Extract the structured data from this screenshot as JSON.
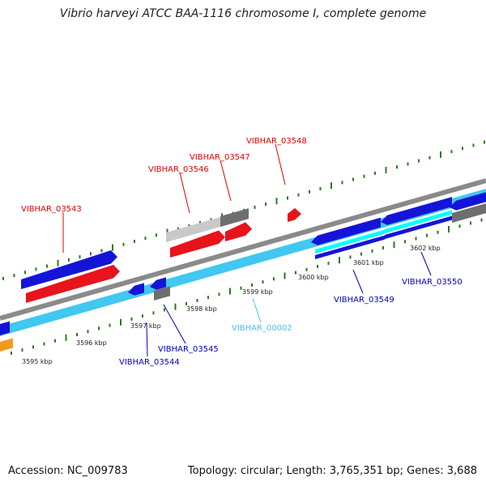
{
  "title": "Vibrio harveyi ATCC BAA-1116 chromosome I, complete genome",
  "footer": {
    "accession": "Accession: NC_009783",
    "topology": "Topology: circular; Length: 3,765,351 bp; Genes: 3,688"
  },
  "colors": {
    "backbone": "#8a8a8a",
    "tick_dots": "#2a7a1e",
    "forward_gene": "#e8131b",
    "reverse_gene": "#1414d8",
    "rna_light": "#40c8f0",
    "pseudo_gray": "#6e6e6e",
    "pseudo_light": "#c9c9c9",
    "other": "#f39a1c"
  },
  "tick_labels": [
    "3595 kbp",
    "3596 kbp",
    "3597 kbp",
    "3598 kbp",
    "3599 kbp",
    "3600 kbp",
    "3601 kbp",
    "3602 kbp"
  ],
  "gene_labels": [
    {
      "name": "VIBHAR_03543",
      "strand": "forward"
    },
    {
      "name": "VIBHAR_03546",
      "strand": "forward"
    },
    {
      "name": "VIBHAR_03547",
      "strand": "forward"
    },
    {
      "name": "VIBHAR_03548",
      "strand": "forward"
    },
    {
      "name": "VIBHAR_03544",
      "strand": "reverse"
    },
    {
      "name": "VIBHAR_03545",
      "strand": "reverse"
    },
    {
      "name": "VIBHAR_00002",
      "strand": "rna"
    },
    {
      "name": "VIBHAR_03549",
      "strand": "reverse"
    },
    {
      "name": "VIBHAR_03550",
      "strand": "reverse"
    }
  ]
}
